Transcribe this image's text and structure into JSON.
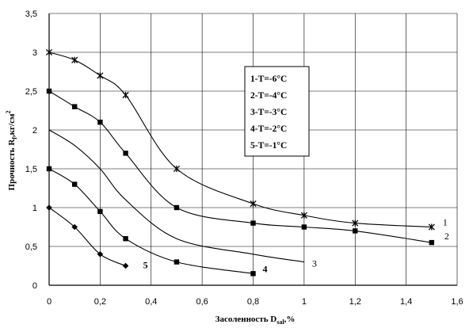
{
  "chart_data": {
    "type": "line",
    "xlabel": "Засоленность D",
    "xlabel_sub": "sal",
    "xlabel_unit": ",%",
    "ylabel": "Прочность R",
    "ylabel_sub": "f",
    "ylabel_unit": ",кг/см",
    "ylabel_sup": "2",
    "xlim": [
      0,
      1.6
    ],
    "ylim": [
      0,
      3.5
    ],
    "x_ticks": [
      "0",
      "0,2",
      "0,4",
      "0,6",
      "0,8",
      "1",
      "1,2",
      "1,4",
      "1,6"
    ],
    "y_ticks": [
      "0",
      "0,5",
      "1",
      "1,5",
      "2",
      "2,5",
      "3",
      "3,5"
    ],
    "grid": true,
    "legend": {
      "placement": "center-right",
      "entries": [
        "1-T=-6°C",
        "2-T=-4°C",
        "3-T=-3°C",
        "4-T=-2°C",
        "5-T=-1°C"
      ]
    },
    "series": [
      {
        "name": "1-T=-6°C",
        "label": "1",
        "marker": "star",
        "x": [
          0,
          0.1,
          0.2,
          0.3,
          0.5,
          0.8,
          1.0,
          1.2,
          1.5
        ],
        "y": [
          3.0,
          2.9,
          2.7,
          2.45,
          1.5,
          1.05,
          0.9,
          0.8,
          0.75
        ]
      },
      {
        "name": "2-T=-4°C",
        "label": "2",
        "marker": "square",
        "x": [
          0,
          0.1,
          0.2,
          0.3,
          0.5,
          0.8,
          1.0,
          1.2,
          1.5
        ],
        "y": [
          2.5,
          2.3,
          2.1,
          1.7,
          1.0,
          0.8,
          0.75,
          0.7,
          0.55
        ]
      },
      {
        "name": "3-T=-3°C",
        "label": "3",
        "marker": "none",
        "x": [
          0,
          0.1,
          0.2,
          0.3,
          0.5,
          0.8,
          1.0
        ],
        "y": [
          2.0,
          1.8,
          1.5,
          1.1,
          0.6,
          0.4,
          0.3
        ]
      },
      {
        "name": "4-T=-2°C",
        "label": "4",
        "marker": "square",
        "x": [
          0,
          0.1,
          0.2,
          0.3,
          0.5,
          0.8
        ],
        "y": [
          1.5,
          1.3,
          0.95,
          0.6,
          0.3,
          0.15
        ]
      },
      {
        "name": "5-T=-1°C",
        "label": "5",
        "marker": "diamond",
        "x": [
          0,
          0.1,
          0.2,
          0.3
        ],
        "y": [
          1.0,
          0.75,
          0.4,
          0.25
        ]
      }
    ]
  }
}
